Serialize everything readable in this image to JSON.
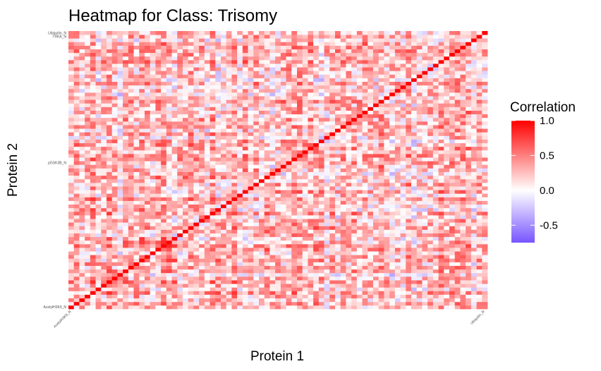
{
  "chart_data": {
    "type": "heatmap",
    "title": "Heatmap for Class: Trisomy",
    "xlabel": "Protein 1",
    "ylabel": "Protein 2",
    "colorbar": {
      "title": "Correlation",
      "ticks": [
        "1.0",
        "0.5",
        "0.0",
        "-0.5"
      ],
      "tick_values": [
        1.0,
        0.5,
        0.0,
        -0.5
      ],
      "range": [
        -0.75,
        1.0
      ],
      "low_color": "#7755ff",
      "mid_color": "#ffffff",
      "high_color": "#ff0000"
    },
    "visible_x_labels": [
      "AcetylH3K9_N",
      "Ubiquitin_N"
    ],
    "visible_y_labels": [
      "Ubiquitin_N",
      "TRKA_N",
      "AcetylH3K9_N",
      "pGSK3B_N"
    ],
    "grid_size": 77,
    "diagonal_value": 1.0,
    "legend_position": "right"
  }
}
